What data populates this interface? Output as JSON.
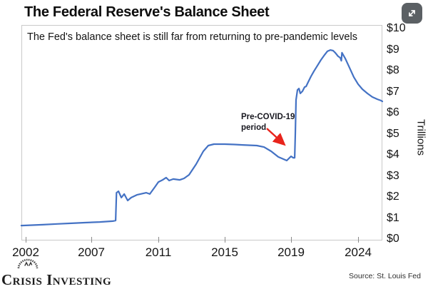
{
  "page": {
    "title": "The Federal Reserve's Balance Sheet",
    "logo_text": "Crisis Investing",
    "source_text": "Source: St. Louis Fed"
  },
  "chart_data": {
    "type": "line",
    "title": "The Federal Reserve's Balance Sheet",
    "subtitle": "The Fed's balance sheet is still far from returning to pre-pandemic levels",
    "ylabel": "Trillions",
    "ylim": [
      0,
      10
    ],
    "grid": false,
    "legend": "none",
    "line_color": "#4472c4",
    "y_ticks": [
      {
        "label": "$0",
        "value": 0
      },
      {
        "label": "$1",
        "value": 1
      },
      {
        "label": "$2",
        "value": 2
      },
      {
        "label": "$3",
        "value": 3
      },
      {
        "label": "$4",
        "value": 4
      },
      {
        "label": "$5",
        "value": 5
      },
      {
        "label": "$6",
        "value": 6
      },
      {
        "label": "$7",
        "value": 7
      },
      {
        "label": "$8",
        "value": 8
      },
      {
        "label": "$9",
        "value": 9
      },
      {
        "label": "$10",
        "value": 10
      }
    ],
    "x_ticks": [
      {
        "label": "2002",
        "year": 2002
      },
      {
        "label": "2007",
        "year": 2007
      },
      {
        "label": "2011",
        "year": 2011
      },
      {
        "label": "2015",
        "year": 2015
      },
      {
        "label": "2019",
        "year": 2019
      },
      {
        "label": "2024",
        "year": 2024
      }
    ],
    "annotation": {
      "line1": "Pre-COVID-19",
      "line2": "period",
      "arrow_color": "#e8241c"
    },
    "series": [
      {
        "name": "Federal Reserve balance sheet ($ trillions)",
        "points": [
          [
            2001.67,
            0.64
          ],
          [
            2002.5,
            0.66
          ],
          [
            2003.3,
            0.68
          ],
          [
            2004.4,
            0.72
          ],
          [
            2005.5,
            0.75
          ],
          [
            2006.5,
            0.78
          ],
          [
            2007.5,
            0.81
          ],
          [
            2008.28,
            0.85
          ],
          [
            2008.45,
            0.88
          ],
          [
            2008.5,
            2.2
          ],
          [
            2008.62,
            2.27
          ],
          [
            2008.79,
            1.97
          ],
          [
            2008.96,
            2.14
          ],
          [
            2009.17,
            1.83
          ],
          [
            2009.38,
            1.97
          ],
          [
            2009.72,
            2.1
          ],
          [
            2010.28,
            2.2
          ],
          [
            2010.49,
            2.14
          ],
          [
            2010.79,
            2.47
          ],
          [
            2011.0,
            2.71
          ],
          [
            2011.26,
            2.81
          ],
          [
            2011.47,
            2.92
          ],
          [
            2011.65,
            2.78
          ],
          [
            2011.9,
            2.85
          ],
          [
            2012.29,
            2.81
          ],
          [
            2012.55,
            2.88
          ],
          [
            2012.85,
            3.05
          ],
          [
            2013.28,
            3.56
          ],
          [
            2013.71,
            4.17
          ],
          [
            2014.01,
            4.44
          ],
          [
            2014.35,
            4.51
          ],
          [
            2015.0,
            4.51
          ],
          [
            2015.6,
            4.49
          ],
          [
            2016.08,
            4.47
          ],
          [
            2016.94,
            4.44
          ],
          [
            2017.37,
            4.37
          ],
          [
            2017.8,
            4.17
          ],
          [
            2018.23,
            3.9
          ],
          [
            2018.53,
            3.8
          ],
          [
            2018.74,
            3.73
          ],
          [
            2018.87,
            3.83
          ],
          [
            2019.0,
            3.93
          ],
          [
            2019.16,
            3.86
          ],
          [
            2019.27,
            3.86
          ],
          [
            2019.32,
            5.0
          ],
          [
            2019.37,
            6.61
          ],
          [
            2019.48,
            7.08
          ],
          [
            2019.59,
            7.15
          ],
          [
            2019.69,
            6.92
          ],
          [
            2019.85,
            7.02
          ],
          [
            2020.01,
            7.22
          ],
          [
            2020.12,
            7.25
          ],
          [
            2020.28,
            7.46
          ],
          [
            2020.49,
            7.73
          ],
          [
            2020.7,
            7.97
          ],
          [
            2020.97,
            8.24
          ],
          [
            2021.23,
            8.51
          ],
          [
            2021.5,
            8.75
          ],
          [
            2021.71,
            8.92
          ],
          [
            2021.93,
            8.98
          ],
          [
            2022.14,
            8.95
          ],
          [
            2022.3,
            8.85
          ],
          [
            2022.51,
            8.68
          ],
          [
            2022.67,
            8.61
          ],
          [
            2022.75,
            8.47
          ],
          [
            2022.8,
            8.85
          ],
          [
            2023.04,
            8.58
          ],
          [
            2023.36,
            8.14
          ],
          [
            2023.68,
            7.69
          ],
          [
            2024.0,
            7.36
          ],
          [
            2024.32,
            7.12
          ],
          [
            2024.69,
            6.92
          ],
          [
            2025.06,
            6.75
          ],
          [
            2025.44,
            6.64
          ],
          [
            2025.7,
            6.58
          ],
          [
            2025.81,
            6.54
          ]
        ]
      }
    ]
  }
}
